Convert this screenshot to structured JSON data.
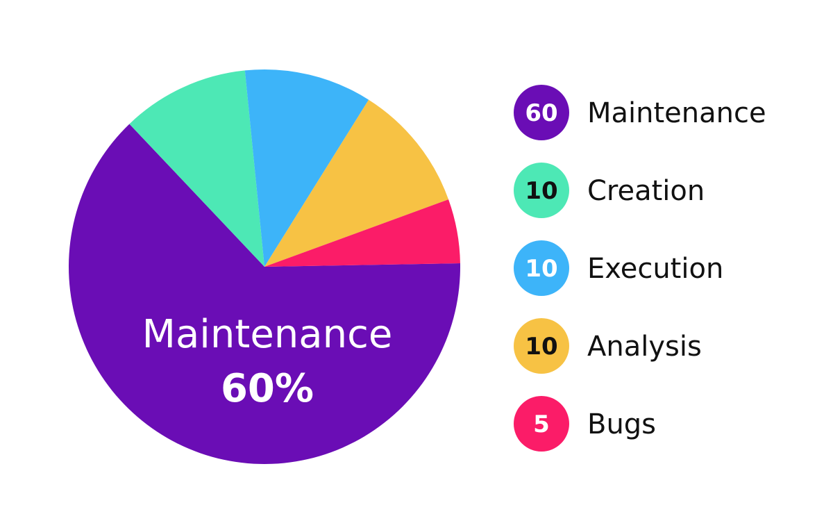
{
  "chart_data": {
    "type": "pie",
    "slices": [
      {
        "name": "Maintenance",
        "value": 60,
        "color": "#6A0DB5",
        "number_color": "#ffffff"
      },
      {
        "name": "Creation",
        "value": 10,
        "color": "#4DE8B5",
        "number_color": "#111111"
      },
      {
        "name": "Execution",
        "value": 10,
        "color": "#3DB4F9",
        "number_color": "#ffffff"
      },
      {
        "name": "Analysis",
        "value": 10,
        "color": "#F7C244",
        "number_color": "#111111"
      },
      {
        "name": "Bugs",
        "value": 5,
        "color": "#FB1C68",
        "number_color": "#ffffff"
      }
    ],
    "callout": {
      "name": "Maintenance",
      "percent": "60%"
    },
    "legend": "right"
  }
}
